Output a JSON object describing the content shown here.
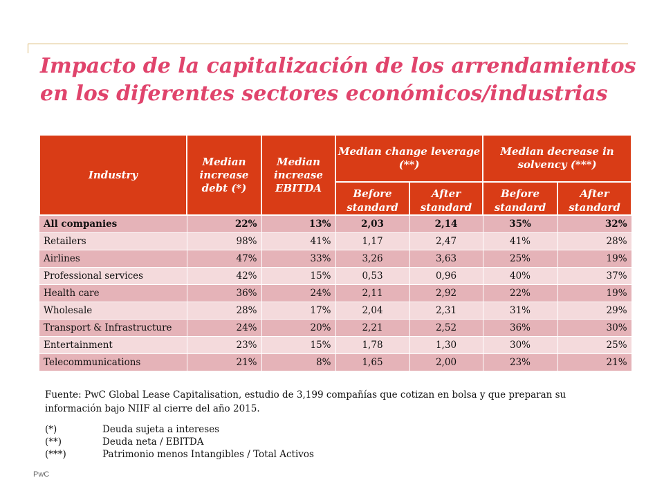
{
  "title": {
    "line1": "Impacto de la capitalización de los arrendamientos",
    "line2": "en los diferentes sectores económicos/industrias"
  },
  "colors": {
    "title": "#e0446c",
    "header_bg": "#d93c16",
    "row_dark": "#e5b3b8",
    "row_light": "#f4dadc",
    "rule": "#d9b56a"
  },
  "table": {
    "headers": {
      "industry": "Industry",
      "debt": "Median increase debt (*)",
      "ebitda": "Median increase EBITDA",
      "leverage": "Median change leverage (**)",
      "solvency": "Median decrease in solvency (***)",
      "lev_before": "Before standard",
      "lev_after": "After standard",
      "sol_before": "Before standard",
      "sol_after": "After standard"
    },
    "rows": [
      {
        "industry": "All companies",
        "debt": "22%",
        "ebitda": "13%",
        "lev_before": "2,03",
        "lev_after": "2,14",
        "sol_before": "35%",
        "sol_after": "32%"
      },
      {
        "industry": "Retailers",
        "debt": "98%",
        "ebitda": "41%",
        "lev_before": "1,17",
        "lev_after": "2,47",
        "sol_before": "41%",
        "sol_after": "28%"
      },
      {
        "industry": "Airlines",
        "debt": "47%",
        "ebitda": "33%",
        "lev_before": "3,26",
        "lev_after": "3,63",
        "sol_before": "25%",
        "sol_after": "19%"
      },
      {
        "industry": "Professional services",
        "debt": "42%",
        "ebitda": "15%",
        "lev_before": "0,53",
        "lev_after": "0,96",
        "sol_before": "40%",
        "sol_after": "37%"
      },
      {
        "industry": "Health care",
        "debt": "36%",
        "ebitda": "24%",
        "lev_before": "2,11",
        "lev_after": "2,92",
        "sol_before": "22%",
        "sol_after": "19%"
      },
      {
        "industry": "Wholesale",
        "debt": "28%",
        "ebitda": "17%",
        "lev_before": "2,04",
        "lev_after": "2,31",
        "sol_before": "31%",
        "sol_after": "29%"
      },
      {
        "industry": "Transport & Infrastructure",
        "debt": "24%",
        "ebitda": "20%",
        "lev_before": "2,21",
        "lev_after": "2,52",
        "sol_before": "36%",
        "sol_after": "30%"
      },
      {
        "industry": "Entertainment",
        "debt": "23%",
        "ebitda": "15%",
        "lev_before": "1,78",
        "lev_after": "1,30",
        "sol_before": "30%",
        "sol_after": "25%"
      },
      {
        "industry": "Telecommunications",
        "debt": "21%",
        "ebitda": "8%",
        "lev_before": "1,65",
        "lev_after": "2,00",
        "sol_before": "23%",
        "sol_after": "21%"
      }
    ]
  },
  "source": "Fuente: PwC Global Lease Capitalisation, estudio de 3,199  compañías que cotizan en bolsa y que preparan su información bajo NIIF al cierre  del año 2015.",
  "notes": [
    {
      "mark": "(*)",
      "text": "Deuda sujeta a intereses"
    },
    {
      "mark": "(**)",
      "text": "Deuda neta / EBITDA"
    },
    {
      "mark": "(***)",
      "text": "Patrimonio menos Intangibles / Total Activos"
    }
  ],
  "footer": "PwC"
}
